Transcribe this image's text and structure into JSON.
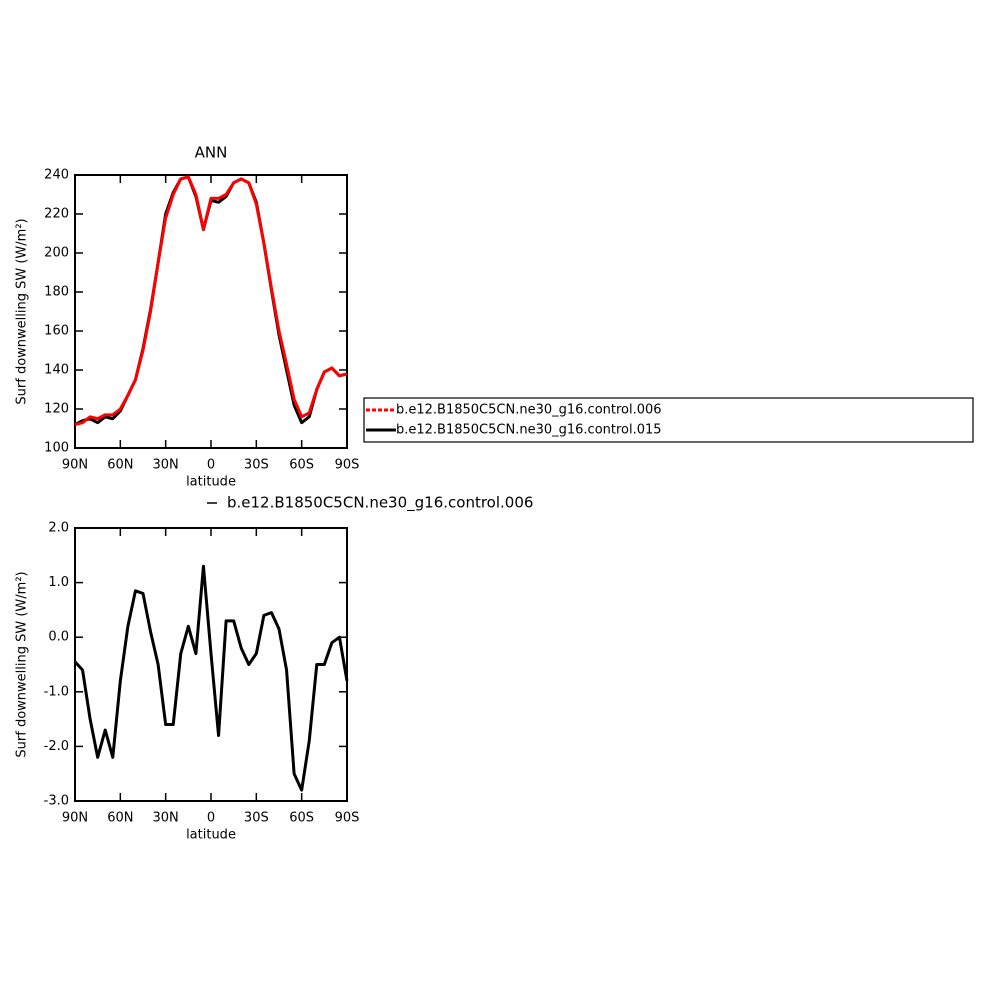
{
  "chart_data": [
    {
      "type": "line",
      "title": "ANN",
      "ylabel": "Surf downwelling SW (W/m²)",
      "xlabel": "latitude",
      "x": [
        90,
        85,
        80,
        75,
        70,
        65,
        60,
        55,
        50,
        45,
        40,
        35,
        30,
        25,
        20,
        15,
        10,
        5,
        0,
        -5,
        -10,
        -15,
        -20,
        -25,
        -30,
        -35,
        -40,
        -45,
        -50,
        -55,
        -60,
        -65,
        -70,
        -75,
        -80,
        -85,
        -90
      ],
      "xlim": [
        90,
        -90
      ],
      "xticks": [
        {
          "value": 90,
          "label": "90N"
        },
        {
          "value": 60,
          "label": "60N"
        },
        {
          "value": 30,
          "label": "30N"
        },
        0,
        {
          "value": -30,
          "label": "30S"
        },
        {
          "value": -60,
          "label": "60S"
        },
        {
          "value": -90,
          "label": "90S"
        }
      ],
      "ylim": [
        100,
        240
      ],
      "yticks": [
        100,
        120,
        140,
        160,
        180,
        200,
        220,
        240
      ],
      "legend": "right",
      "series": [
        {
          "name": "b.e12.B1850C5CN.ne30_g16.control.015",
          "color": "#000000",
          "values": [
            112,
            114,
            115,
            113,
            116,
            115,
            119,
            127,
            135,
            151,
            171,
            195,
            220,
            231,
            238,
            239,
            229,
            212,
            227,
            226,
            229,
            236,
            238,
            236,
            226,
            205,
            181,
            158,
            140,
            122,
            113,
            116,
            130,
            139,
            141,
            137,
            138
          ]
        },
        {
          "name": "b.e12.B1850C5CN.ne30_g16.control.006",
          "color": "#ff0000",
          "dashed": true,
          "values": [
            112,
            113,
            116,
            115,
            117,
            117,
            120,
            127,
            135,
            150,
            170,
            195,
            218,
            230,
            238,
            239,
            230,
            212,
            228,
            228,
            230,
            236,
            238,
            236,
            225,
            205,
            182,
            160,
            143,
            125,
            116,
            118,
            130,
            139,
            141,
            137,
            138
          ]
        }
      ]
    },
    {
      "type": "line",
      "ylabel": "Surf downwelling SW (W/m²)",
      "xlabel": "latitude",
      "x": [
        90,
        85,
        80,
        75,
        70,
        65,
        60,
        55,
        50,
        45,
        40,
        35,
        30,
        25,
        20,
        15,
        10,
        5,
        0,
        -5,
        -10,
        -15,
        -20,
        -25,
        -30,
        -35,
        -40,
        -45,
        -50,
        -55,
        -60,
        -65,
        -70,
        -75,
        -80,
        -85,
        -90
      ],
      "xlim": [
        90,
        -90
      ],
      "xticks": [
        {
          "value": 90,
          "label": "90N"
        },
        {
          "value": 60,
          "label": "60N"
        },
        {
          "value": 30,
          "label": "30N"
        },
        0,
        {
          "value": -30,
          "label": "30S"
        },
        {
          "value": -60,
          "label": "60S"
        },
        {
          "value": -90,
          "label": "90S"
        }
      ],
      "ylim": [
        -3,
        2
      ],
      "yticks": [
        {
          "value": -3,
          "label": "-3.0"
        },
        {
          "value": -2,
          "label": "-2.0"
        },
        {
          "value": -1,
          "label": "-1.0"
        },
        {
          "value": 0,
          "label": "0.0"
        },
        {
          "value": 1,
          "label": "1.0"
        },
        {
          "value": 2,
          "label": "2.0"
        }
      ],
      "legend": "top",
      "series": [
        {
          "name": "b.e12.B1850C5CN.ne30_g16.control.006",
          "color": "#000000",
          "values": [
            -0.45,
            -0.6,
            -1.5,
            -2.2,
            -1.7,
            -2.2,
            -0.8,
            0.2,
            0.85,
            0.8,
            0.1,
            -0.5,
            -1.6,
            -1.6,
            -0.3,
            0.2,
            -0.3,
            1.3,
            -0.3,
            -1.8,
            0.3,
            0.3,
            -0.2,
            -0.5,
            -0.3,
            0.4,
            0.45,
            0.15,
            -0.6,
            -2.5,
            -2.8,
            -1.9,
            -0.5,
            -0.5,
            -0.1,
            0.0,
            -0.8
          ]
        }
      ]
    }
  ]
}
